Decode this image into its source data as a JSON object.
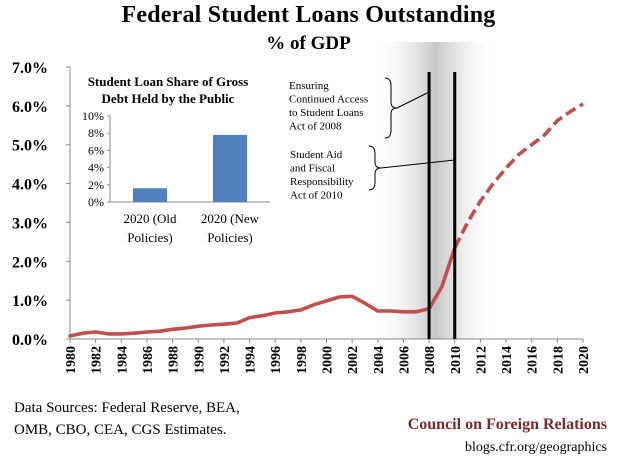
{
  "header": {
    "title": "Federal Student Loans Outstanding",
    "subtitle": "% of GDP"
  },
  "footer": {
    "sources_line1": "Data Sources: Federal Reserve, BEA,",
    "sources_line2": "OMB, CBO, CEA, CGS Estimates.",
    "org": "Council on Foreign Relations",
    "url": "blogs.cfr.org/geographics"
  },
  "colors": {
    "line": "#c0504d",
    "bar": "#4f81bd",
    "shade": "#b3b3b3",
    "vertical_lines": "#000000"
  },
  "chart_data": [
    {
      "type": "line",
      "title": "Federal Student Loans Outstanding",
      "subtitle": "% of GDP",
      "xlabel": "",
      "ylabel": "",
      "x_ticks": [
        "1980",
        "1982",
        "1984",
        "1986",
        "1988",
        "1990",
        "1992",
        "1994",
        "1996",
        "1998",
        "2000",
        "2002",
        "2004",
        "2006",
        "2008",
        "2010",
        "2012",
        "2014",
        "2016",
        "2018",
        "2020"
      ],
      "y_ticks": [
        "0.0%",
        "1.0%",
        "2.0%",
        "3.0%",
        "4.0%",
        "5.0%",
        "6.0%",
        "7.0%"
      ],
      "xlim": [
        1980,
        2020
      ],
      "ylim": [
        0,
        7
      ],
      "grid": false,
      "series": [
        {
          "style": "solid",
          "x": [
            1980,
            1981,
            1982,
            1983,
            1984,
            1985,
            1986,
            1987,
            1988,
            1989,
            1990,
            1991,
            1992,
            1993,
            1994,
            1995,
            1996,
            1997,
            1998,
            1999,
            2000,
            2001,
            2002,
            2003,
            2004,
            2005,
            2006,
            2007,
            2008,
            2009,
            2010
          ],
          "y": [
            0.08,
            0.15,
            0.18,
            0.13,
            0.13,
            0.15,
            0.18,
            0.2,
            0.25,
            0.28,
            0.33,
            0.36,
            0.38,
            0.41,
            0.55,
            0.6,
            0.67,
            0.7,
            0.75,
            0.88,
            0.98,
            1.08,
            1.1,
            0.92,
            0.72,
            0.72,
            0.7,
            0.7,
            0.78,
            1.35,
            2.35
          ]
        },
        {
          "style": "dashed",
          "x": [
            2010,
            2011,
            2012,
            2013,
            2014,
            2015,
            2016,
            2017,
            2018,
            2019,
            2020
          ],
          "y": [
            2.35,
            3.0,
            3.55,
            4.0,
            4.4,
            4.75,
            5.0,
            5.25,
            5.62,
            5.85,
            6.05
          ]
        }
      ],
      "shaded_region": {
        "from": 2003.5,
        "to": 2013.5
      },
      "vertical_lines": [
        2008,
        2010
      ],
      "annotations": [
        {
          "x": 2008,
          "text": [
            "Ensuring",
            "Continued Access",
            "to Student Loans",
            "Act of 2008"
          ]
        },
        {
          "x": 2010,
          "text": [
            "Student Aid",
            "and Fiscal",
            "Responsibility",
            "Act of 2010"
          ]
        }
      ]
    },
    {
      "type": "bar",
      "title": "Student Loan Share of Gross Debt Held by the Public",
      "title_lines": [
        "Student Loan Share of Gross",
        "Debt Held by the Public"
      ],
      "categories": [
        "2020 (Old Policies)",
        "2020 (New Policies)"
      ],
      "category_lines": [
        [
          "2020 (Old",
          "Policies)"
        ],
        [
          "2020 (New",
          "Policies)"
        ]
      ],
      "values": [
        1.6,
        7.8
      ],
      "y_ticks": [
        "0%",
        "2%",
        "4%",
        "6%",
        "8%",
        "10%"
      ],
      "ylim": [
        0,
        10
      ],
      "grid": false
    }
  ]
}
